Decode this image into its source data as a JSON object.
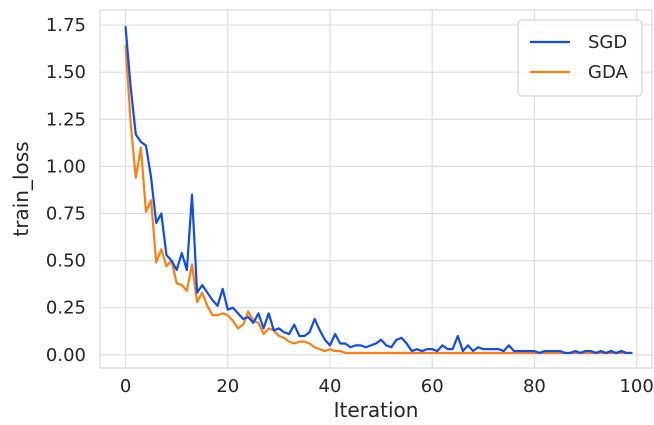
{
  "chart_data": {
    "type": "line",
    "title": "",
    "xlabel": "Iteration",
    "ylabel": "train_loss",
    "xlim": [
      -5,
      103
    ],
    "ylim": [
      -0.07,
      1.83
    ],
    "xticks": [
      0,
      20,
      40,
      60,
      80,
      100
    ],
    "xtick_labels": [
      "0",
      "20",
      "40",
      "60",
      "80",
      "100"
    ],
    "yticks": [
      0,
      0.25,
      0.5,
      0.75,
      1.0,
      1.25,
      1.5,
      1.75
    ],
    "ytick_labels": [
      "0.00",
      "0.25",
      "0.50",
      "0.75",
      "1.00",
      "1.25",
      "1.50",
      "1.75"
    ],
    "grid": true,
    "legend_position": "top-right",
    "x": [
      0,
      1,
      2,
      3,
      4,
      5,
      6,
      7,
      8,
      9,
      10,
      11,
      12,
      13,
      14,
      15,
      16,
      17,
      18,
      19,
      20,
      21,
      22,
      23,
      24,
      25,
      26,
      27,
      28,
      29,
      30,
      31,
      32,
      33,
      34,
      35,
      36,
      37,
      38,
      39,
      40,
      41,
      42,
      43,
      44,
      45,
      46,
      47,
      48,
      49,
      50,
      51,
      52,
      53,
      54,
      55,
      56,
      57,
      58,
      59,
      60,
      61,
      62,
      63,
      64,
      65,
      66,
      67,
      68,
      69,
      70,
      71,
      72,
      73,
      74,
      75,
      76,
      77,
      78,
      79,
      80,
      81,
      82,
      83,
      84,
      85,
      86,
      87,
      88,
      89,
      90,
      91,
      92,
      93,
      94,
      95,
      96,
      97,
      98,
      99
    ],
    "series": [
      {
        "name": "SGD",
        "color": "#0b4cf5",
        "values": [
          1.74,
          1.42,
          1.17,
          1.13,
          1.11,
          0.94,
          0.7,
          0.75,
          0.53,
          0.5,
          0.45,
          0.54,
          0.45,
          0.85,
          0.33,
          0.37,
          0.33,
          0.29,
          0.26,
          0.35,
          0.24,
          0.25,
          0.22,
          0.19,
          0.2,
          0.17,
          0.22,
          0.14,
          0.22,
          0.13,
          0.14,
          0.12,
          0.11,
          0.16,
          0.1,
          0.1,
          0.12,
          0.19,
          0.13,
          0.08,
          0.05,
          0.11,
          0.06,
          0.06,
          0.04,
          0.05,
          0.05,
          0.04,
          0.05,
          0.06,
          0.08,
          0.05,
          0.04,
          0.08,
          0.09,
          0.06,
          0.02,
          0.03,
          0.02,
          0.03,
          0.03,
          0.02,
          0.05,
          0.03,
          0.03,
          0.1,
          0.02,
          0.05,
          0.02,
          0.04,
          0.03,
          0.03,
          0.03,
          0.03,
          0.02,
          0.05,
          0.02,
          0.02,
          0.02,
          0.02,
          0.02,
          0.01,
          0.02,
          0.02,
          0.02,
          0.02,
          0.01,
          0.01,
          0.02,
          0.01,
          0.02,
          0.02,
          0.01,
          0.02,
          0.01,
          0.02,
          0.01,
          0.02,
          0.01,
          0.01
        ]
      },
      {
        "name": "GDA",
        "color": "#ff7f0e",
        "values": [
          1.64,
          1.23,
          0.94,
          1.1,
          0.76,
          0.82,
          0.49,
          0.56,
          0.47,
          0.5,
          0.38,
          0.37,
          0.34,
          0.48,
          0.28,
          0.33,
          0.26,
          0.21,
          0.21,
          0.22,
          0.21,
          0.18,
          0.14,
          0.16,
          0.23,
          0.18,
          0.17,
          0.11,
          0.14,
          0.13,
          0.1,
          0.09,
          0.07,
          0.06,
          0.07,
          0.07,
          0.06,
          0.04,
          0.03,
          0.02,
          0.03,
          0.02,
          0.02,
          0.01,
          0.01,
          0.01,
          0.01,
          0.01,
          0.01,
          0.01,
          0.01,
          0.01,
          0.01,
          0.01,
          0.01,
          0.01,
          0.01,
          0.01,
          0.01,
          0.01,
          0.01,
          0.01,
          0.01,
          0.01,
          0.01,
          0.01,
          0.01,
          0.01,
          0.01,
          0.01,
          0.01,
          0.01,
          0.01,
          0.01,
          0.01,
          0.01,
          0.01,
          0.01,
          0.01,
          0.01,
          0.01,
          0.01,
          0.01,
          0.01,
          0.01,
          0.01,
          0.01,
          0.01,
          0.01,
          0.01,
          0.01,
          0.01,
          0.01,
          0.01,
          0.01,
          0.01,
          0.01,
          0.01,
          0.01,
          0.01
        ]
      }
    ]
  }
}
